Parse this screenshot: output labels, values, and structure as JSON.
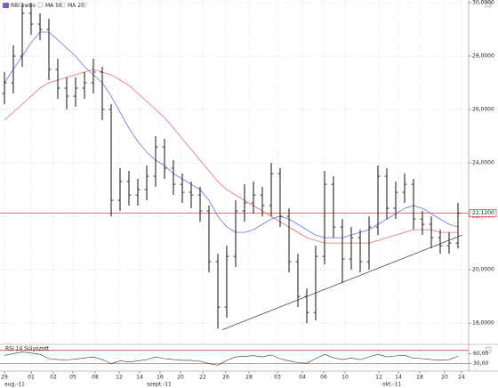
{
  "chart_data": {
    "type": "ohlc",
    "name": "RBI.xwbo",
    "color": "#111111",
    "x": [
      0,
      1,
      2,
      3,
      4,
      5,
      6,
      7,
      8,
      9,
      10,
      11,
      12,
      13,
      14,
      15,
      16,
      17,
      18,
      19,
      20,
      21,
      22,
      23,
      24,
      25,
      26,
      27,
      28,
      29,
      30,
      31,
      32,
      33,
      34,
      35,
      36,
      37,
      38,
      39,
      40,
      41,
      42,
      43,
      44,
      45,
      46,
      47,
      48,
      49,
      50,
      51
    ],
    "open": [
      26.6,
      27.0,
      28.0,
      29.6,
      29.2,
      29.0,
      27.5,
      26.8,
      26.5,
      26.8,
      27.0,
      27.4,
      26.0,
      22.6,
      23.3,
      22.8,
      23.0,
      23.5,
      24.6,
      23.8,
      23.2,
      22.9,
      22.8,
      22.2,
      20.3,
      18.6,
      20.5,
      22.2,
      22.5,
      22.8,
      22.4,
      23.6,
      22.0,
      20.3,
      19.0,
      18.4,
      20.5,
      23.2,
      21.6,
      20.4,
      21.2,
      20.3,
      21.6,
      23.5,
      22.3,
      22.9,
      23.2,
      21.9,
      21.7,
      21.2,
      20.9,
      21.0
    ],
    "high": [
      27.4,
      28.4,
      30.0,
      30.0,
      29.6,
      29.4,
      27.9,
      27.2,
      27.2,
      27.4,
      27.9,
      27.6,
      26.2,
      23.8,
      23.7,
      23.4,
      23.9,
      25.0,
      24.9,
      24.1,
      23.6,
      23.3,
      23.1,
      22.4,
      20.6,
      20.9,
      22.6,
      23.2,
      23.3,
      23.1,
      24.0,
      23.8,
      22.3,
      20.6,
      19.3,
      20.9,
      23.7,
      23.5,
      21.9,
      21.6,
      21.5,
      22.0,
      23.9,
      23.8,
      23.3,
      23.6,
      23.4,
      22.2,
      22.0,
      21.5,
      21.4,
      22.5
    ],
    "low": [
      26.2,
      26.6,
      27.6,
      28.8,
      28.6,
      27.1,
      26.4,
      26.0,
      26.1,
      26.4,
      26.6,
      25.6,
      22.0,
      22.2,
      22.4,
      22.4,
      22.6,
      23.1,
      23.4,
      22.8,
      22.5,
      22.3,
      21.8,
      19.9,
      17.8,
      18.2,
      20.1,
      21.8,
      22.1,
      22.0,
      22.0,
      21.6,
      19.9,
      18.6,
      18.0,
      18.1,
      20.2,
      21.2,
      19.5,
      20.0,
      19.9,
      20.0,
      21.3,
      21.9,
      21.9,
      22.5,
      21.5,
      21.3,
      20.8,
      20.6,
      20.6,
      20.8
    ],
    "close": [
      27.0,
      28.0,
      29.6,
      29.2,
      29.0,
      27.5,
      26.8,
      26.5,
      26.8,
      27.0,
      27.4,
      26.0,
      22.6,
      23.3,
      22.8,
      23.0,
      23.5,
      24.6,
      23.8,
      23.2,
      22.9,
      22.8,
      22.2,
      20.3,
      18.6,
      20.5,
      22.2,
      22.5,
      22.8,
      22.4,
      23.6,
      22.0,
      20.3,
      19.0,
      18.4,
      20.5,
      23.2,
      21.6,
      20.4,
      21.2,
      20.3,
      21.6,
      23.5,
      22.3,
      22.9,
      23.2,
      21.9,
      21.7,
      21.2,
      20.9,
      21.0,
      22.12
    ],
    "overlays": [
      {
        "name": "MA 50",
        "color": "#e07070",
        "values": [
          25.6,
          25.9,
          26.2,
          26.5,
          26.8,
          27.0,
          27.1,
          27.2,
          27.3,
          27.4,
          27.5,
          27.4,
          27.3,
          27.1,
          26.9,
          26.6,
          26.3,
          26.0,
          25.7,
          25.3,
          24.9,
          24.5,
          24.1,
          23.7,
          23.3,
          23.0,
          22.8,
          22.6,
          22.4,
          22.2,
          22.0,
          21.8,
          21.6,
          21.4,
          21.2,
          21.1,
          21.0,
          21.0,
          21.0,
          21.0,
          21.0,
          21.0,
          21.1,
          21.2,
          21.3,
          21.4,
          21.5,
          21.5,
          21.5,
          21.4,
          21.4,
          21.4
        ]
      },
      {
        "name": "MA 20",
        "color": "#6a76e0",
        "values": [
          27.0,
          27.5,
          28.0,
          28.5,
          28.9,
          28.9,
          28.6,
          28.3,
          28.0,
          27.6,
          27.3,
          27.0,
          26.5,
          25.9,
          25.3,
          24.8,
          24.4,
          24.1,
          23.9,
          23.6,
          23.4,
          23.2,
          23.0,
          22.6,
          22.0,
          21.6,
          21.4,
          21.4,
          21.5,
          21.7,
          21.9,
          22.0,
          21.9,
          21.7,
          21.5,
          21.3,
          21.2,
          21.2,
          21.2,
          21.3,
          21.4,
          21.5,
          21.7,
          21.9,
          22.1,
          22.3,
          22.4,
          22.3,
          22.1,
          21.9,
          21.7,
          21.6
        ]
      }
    ],
    "last_price": {
      "value": 22.12,
      "label": "22,1200",
      "color": "#d02020"
    },
    "trendline": {
      "x": [
        24.5,
        51.5
      ],
      "y": [
        17.75,
        21.3
      ],
      "color": "#333333"
    },
    "xlim": [
      -0.5,
      52.2
    ],
    "ylim": [
      17.27,
      30.1
    ],
    "yticks": [
      {
        "value": 18,
        "label": "18,0000"
      },
      {
        "value": 20,
        "label": "20,0000"
      },
      {
        "value": 22,
        "label": "22,0000"
      },
      {
        "value": 24,
        "label": "24,0000"
      },
      {
        "value": 26,
        "label": "26,0000"
      },
      {
        "value": 28,
        "label": "28,0000"
      },
      {
        "value": 30,
        "label": "30,0000"
      }
    ],
    "xticks": [
      {
        "value": 0,
        "label": "29"
      },
      {
        "value": 3,
        "label": "01"
      },
      {
        "value": 5.5,
        "label": "02"
      },
      {
        "value": 7.7,
        "label": "05"
      },
      {
        "value": 10.2,
        "label": "08"
      },
      {
        "value": 12.9,
        "label": "12"
      },
      {
        "value": 15.2,
        "label": "14"
      },
      {
        "value": 17.5,
        "label": "16"
      },
      {
        "value": 19.8,
        "label": "20"
      },
      {
        "value": 22.3,
        "label": "22"
      },
      {
        "value": 24.9,
        "label": "26"
      },
      {
        "value": 27.5,
        "label": "28"
      },
      {
        "value": 30.7,
        "label": "03"
      },
      {
        "value": 33.5,
        "label": "04"
      },
      {
        "value": 35.9,
        "label": "06"
      },
      {
        "value": 38.3,
        "label": "10"
      },
      {
        "value": 42.1,
        "label": "12"
      },
      {
        "value": 44.3,
        "label": "14"
      },
      {
        "value": 46.7,
        "label": "18"
      },
      {
        "value": 49.5,
        "label": "20"
      },
      {
        "value": 51.4,
        "label": "24"
      }
    ],
    "month_ticks": [
      {
        "value": 0,
        "label": "aug.-11"
      },
      {
        "value": 16,
        "label": "szept.-11"
      },
      {
        "value": 42.5,
        "label": "okt.-11"
      }
    ],
    "grid": true,
    "rsi": {
      "type": "line",
      "name": "RSI 14 Súlyozott",
      "color": "#333333",
      "values": [
        55,
        60,
        65,
        62,
        58,
        45,
        42,
        41,
        44,
        47,
        50,
        42,
        30,
        38,
        35,
        38,
        42,
        50,
        45,
        42,
        40,
        40,
        37,
        30,
        25,
        40,
        50,
        52,
        54,
        50,
        56,
        45,
        38,
        33,
        31,
        45,
        58,
        48,
        42,
        47,
        42,
        50,
        58,
        50,
        53,
        55,
        46,
        45,
        42,
        40,
        42,
        52
      ],
      "ylim": [
        10,
        80
      ],
      "yticks": [
        {
          "value": 60,
          "label": "60,00"
        },
        {
          "value": 30,
          "label": "30,00"
        }
      ],
      "levels": [
        {
          "value": 70,
          "color": "#c03030"
        },
        {
          "value": 30,
          "color": "#30a030"
        }
      ]
    }
  }
}
